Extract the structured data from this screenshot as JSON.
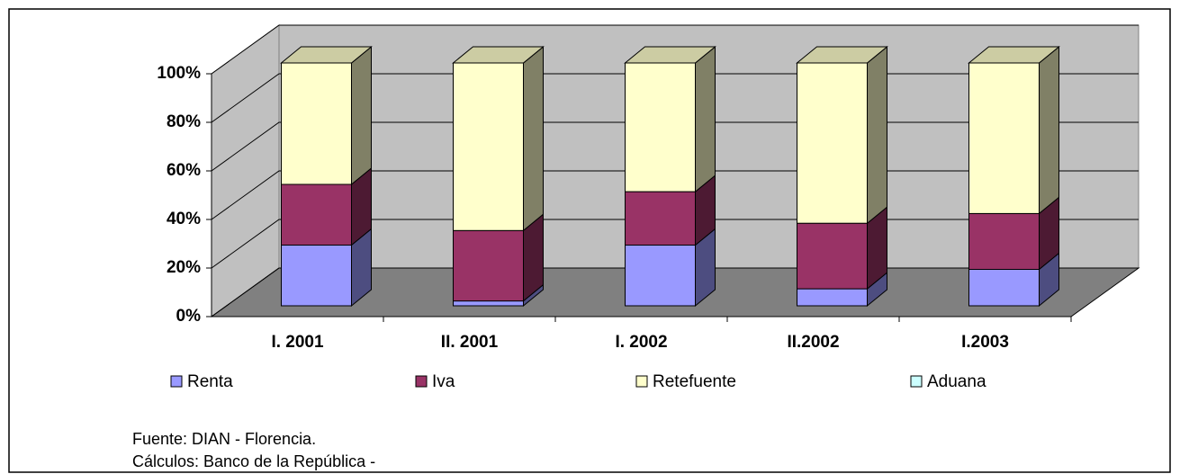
{
  "chart_data": {
    "type": "bar3d_stacked_percent",
    "categories": [
      "I. 2001",
      "II. 2001",
      "I. 2002",
      "II.2002",
      "I.2003"
    ],
    "series": [
      {
        "name": "Renta",
        "color": "#9999ff",
        "values": [
          25,
          2,
          25,
          7,
          15
        ]
      },
      {
        "name": "Iva",
        "color": "#993366",
        "values": [
          25,
          29,
          22,
          27,
          23
        ]
      },
      {
        "name": "Retefuente",
        "color": "#ffffcc",
        "values": [
          50,
          69,
          53,
          66,
          62
        ]
      },
      {
        "name": "Aduana",
        "color": "#ccffff",
        "values": [
          0,
          0,
          0,
          0,
          0
        ]
      }
    ],
    "ylim": [
      0,
      100
    ],
    "yticks": [
      {
        "value": 0,
        "label": "0%"
      },
      {
        "value": 20,
        "label": "20%"
      },
      {
        "value": 40,
        "label": "40%"
      },
      {
        "value": 60,
        "label": "60%"
      },
      {
        "value": 80,
        "label": "80%"
      },
      {
        "value": 100,
        "label": "100%"
      }
    ],
    "grid": true,
    "legend": "bottom",
    "notes": [
      "Fuente: DIAN - Florencia.",
      "Cálculos: Banco de la República -"
    ]
  }
}
